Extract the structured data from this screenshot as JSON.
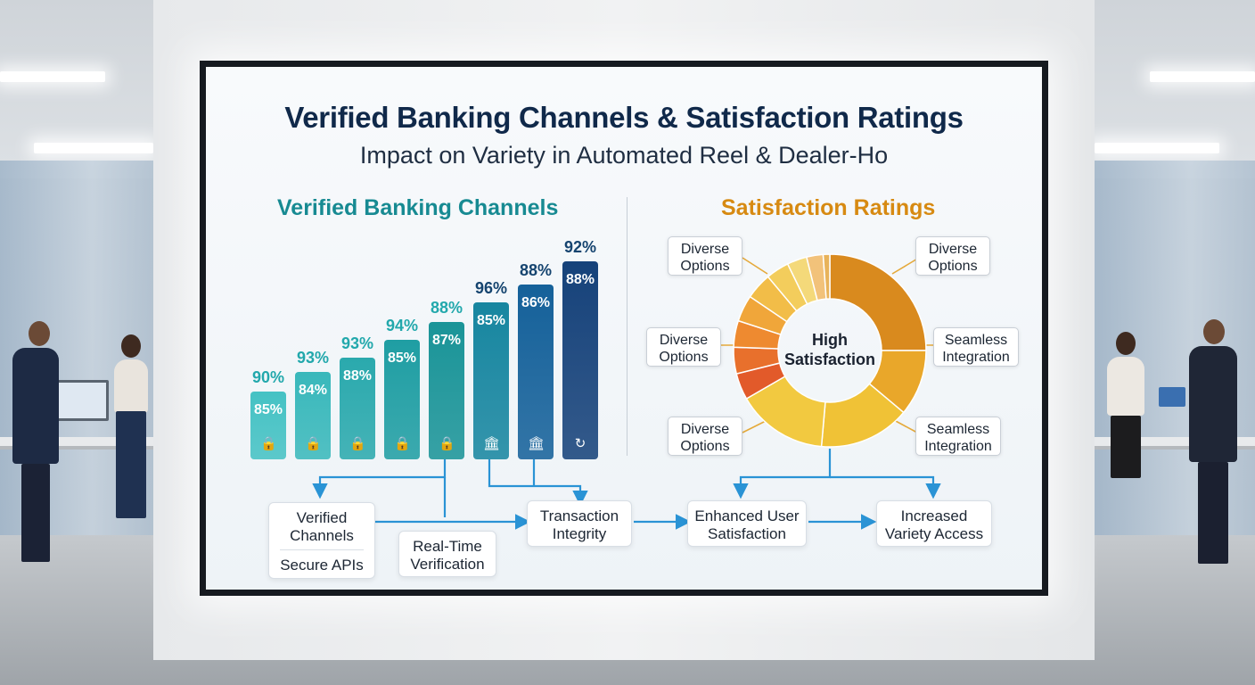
{
  "board": {
    "title": "Verified Banking Channels & Satisfaction Ratings",
    "subtitle": "Impact on Variety in Automated Reel & Dealer-Ho"
  },
  "left_panel": {
    "heading": "Verified Banking Channels",
    "bars": [
      {
        "top": "90%",
        "inner": "85%",
        "icon": "lock-icon",
        "color": "#45c2c4"
      },
      {
        "top": "93%",
        "inner": "84%",
        "icon": "lock-icon",
        "color": "#39b8bb"
      },
      {
        "top": "93%",
        "inner": "88%",
        "icon": "lock-icon",
        "color": "#2aa9ad"
      },
      {
        "top": "94%",
        "inner": "85%",
        "icon": "lock-icon",
        "color": "#1f9ea3"
      },
      {
        "top": "88%",
        "inner": "87%",
        "icon": "lock-icon",
        "color": "#1a9498"
      },
      {
        "top": "96%",
        "inner": "85%",
        "icon": "bank-icon",
        "color": "#1786a0"
      },
      {
        "top": "88%",
        "inner": "86%",
        "icon": "bank-icon",
        "color": "#15619a"
      },
      {
        "top": "92%",
        "inner": "88%",
        "icon": "refresh-icon",
        "color": "#16427a"
      }
    ]
  },
  "right_panel": {
    "heading": "Satisfaction Ratings",
    "donut_center": "High\nSatisfaction",
    "center_line1": "High",
    "center_line2": "Satisfaction",
    "callouts": [
      {
        "line1": "Diverse",
        "line2": "Options"
      },
      {
        "line1": "Diverse",
        "line2": "Options"
      },
      {
        "line1": "Diverse",
        "line2": "Options"
      },
      {
        "line1": "Diverse",
        "line2": "Options"
      },
      {
        "line1": "Seamless",
        "line2": "Integration"
      },
      {
        "line1": "Seamless",
        "line2": "Integration"
      }
    ]
  },
  "flow": {
    "verified_channels": {
      "line1": "Verified",
      "line2": "Channels",
      "sub": "Secure APIs"
    },
    "real_time": {
      "line1": "Real-Time",
      "line2": "Verification"
    },
    "transaction": {
      "line1": "Transaction",
      "line2": "Integrity"
    },
    "enhanced": {
      "line1": "Enhanced User",
      "line2": "Satisfaction"
    },
    "increased": {
      "line1": "Increased",
      "line2": "Variety Access"
    }
  },
  "colors": {
    "teal": "#178a92",
    "navy": "#10294a",
    "orange": "#d78a12",
    "arrow": "#2a93d5"
  }
}
